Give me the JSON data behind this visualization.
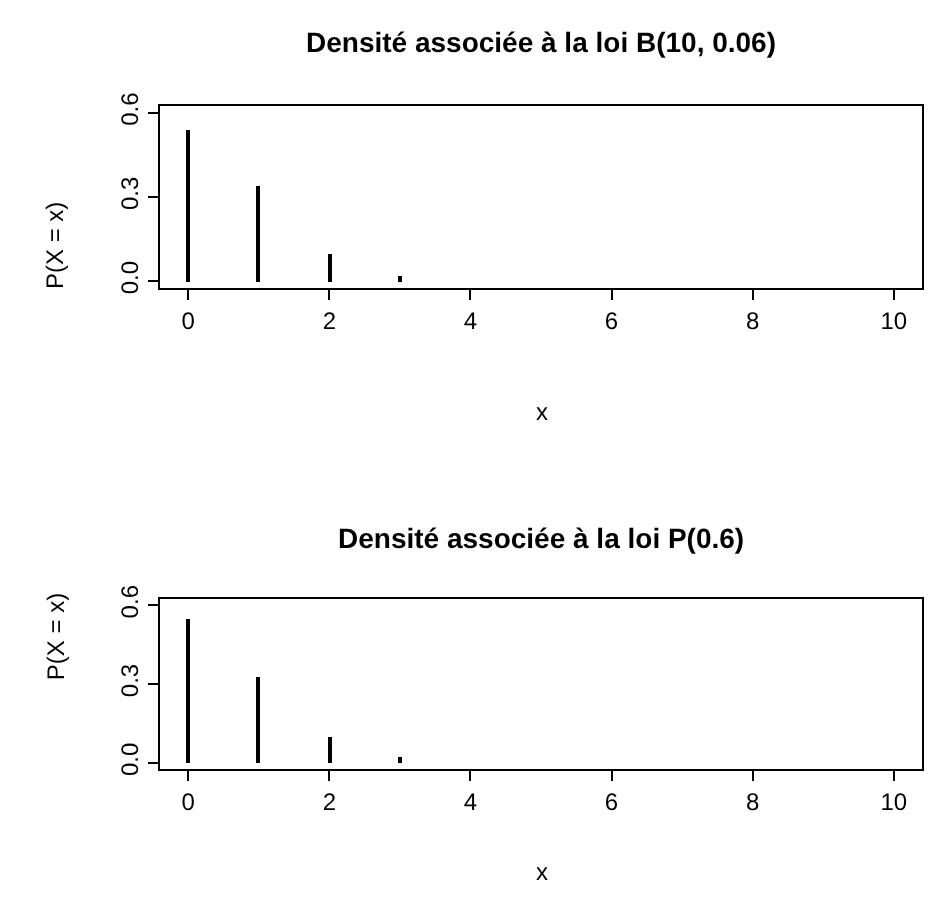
{
  "chart_data": [
    {
      "type": "bar",
      "title": "Densité associée à la loi B(10, 0.06)",
      "xlabel": "x",
      "ylabel": "P(X = x)",
      "color": "#000000",
      "x": [
        0,
        1,
        2,
        3,
        4,
        5,
        6,
        7,
        8,
        9,
        10
      ],
      "values": [
        0.54,
        0.34,
        0.1,
        0.02,
        0.0,
        0.0,
        0.0,
        0.0,
        0.0,
        0.0,
        0.0
      ],
      "xlim": [
        -0.4,
        10.4
      ],
      "xticks": [
        0,
        2,
        4,
        6,
        8,
        10
      ],
      "ylim": [
        -0.024,
        0.624
      ],
      "yticks": [
        {
          "value": 0,
          "label": "0.0"
        },
        {
          "value": 0.3,
          "label": "0.3"
        },
        {
          "value": 0.6,
          "label": "0.6"
        }
      ],
      "grid": false
    },
    {
      "type": "bar",
      "title": "Densité associée à la loi P(0.6)",
      "xlabel": "x",
      "ylabel": "P(X = x)",
      "color": "#000000",
      "x": [
        0,
        1,
        2,
        3,
        4,
        5,
        6,
        7,
        8,
        9,
        10
      ],
      "values": [
        0.55,
        0.33,
        0.1,
        0.02,
        0.0,
        0.0,
        0.0,
        0.0,
        0.0,
        0.0,
        0.0
      ],
      "xlim": [
        -0.4,
        10.4
      ],
      "xticks": [
        0,
        2,
        4,
        6,
        8,
        10
      ],
      "ylim": [
        -0.024,
        0.624
      ],
      "yticks": [
        {
          "value": 0,
          "label": "0.0"
        },
        {
          "value": 0.3,
          "label": "0.3"
        },
        {
          "value": 0.6,
          "label": "0.6"
        }
      ],
      "grid": false
    }
  ]
}
